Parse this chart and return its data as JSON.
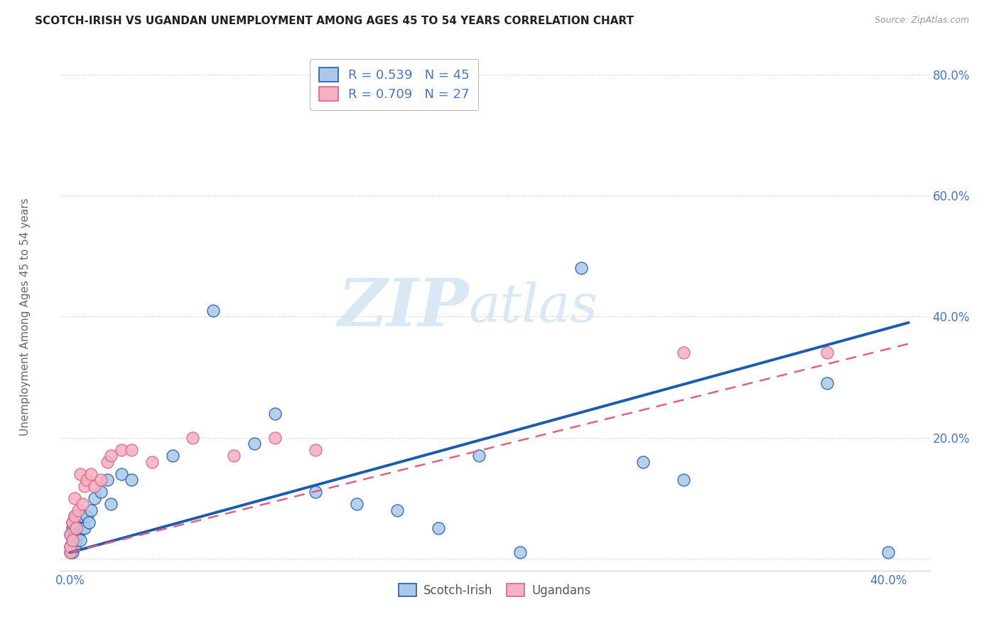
{
  "title": "SCOTCH-IRISH VS UGANDAN UNEMPLOYMENT AMONG AGES 45 TO 54 YEARS CORRELATION CHART",
  "source": "Source: ZipAtlas.com",
  "ylabel": "Unemployment Among Ages 45 to 54 years",
  "xlim": [
    -0.005,
    0.42
  ],
  "ylim": [
    -0.02,
    0.85
  ],
  "xticks": [
    0.0,
    0.05,
    0.1,
    0.15,
    0.2,
    0.25,
    0.3,
    0.35,
    0.4
  ],
  "yticks": [
    0.0,
    0.2,
    0.4,
    0.6,
    0.8
  ],
  "xtick_labels": [
    "0.0%",
    "",
    "",
    "",
    "",
    "",
    "",
    "",
    "40.0%"
  ],
  "ytick_labels": [
    "",
    "20.0%",
    "40.0%",
    "60.0%",
    "80.0%"
  ],
  "scotch_irish_R": 0.539,
  "scotch_irish_N": 45,
  "ugandan_R": 0.709,
  "ugandan_N": 27,
  "scotch_irish_color": "#aac8e8",
  "ugandan_color": "#f4b0c4",
  "scotch_irish_line_color": "#1a5cb0",
  "ugandan_line_color": "#e06080",
  "watermark_color": "#d8e8f5",
  "background_color": "#ffffff",
  "grid_color": "#cccccc",
  "scotch_irish_x": [
    0.0,
    0.0,
    0.0,
    0.001,
    0.001,
    0.001,
    0.001,
    0.002,
    0.002,
    0.002,
    0.002,
    0.003,
    0.003,
    0.003,
    0.004,
    0.004,
    0.005,
    0.005,
    0.006,
    0.006,
    0.007,
    0.008,
    0.009,
    0.01,
    0.012,
    0.015,
    0.018,
    0.02,
    0.025,
    0.03,
    0.05,
    0.07,
    0.09,
    0.1,
    0.12,
    0.14,
    0.16,
    0.18,
    0.2,
    0.22,
    0.25,
    0.28,
    0.3,
    0.37,
    0.4
  ],
  "scotch_irish_y": [
    0.01,
    0.02,
    0.04,
    0.01,
    0.03,
    0.05,
    0.06,
    0.02,
    0.04,
    0.05,
    0.07,
    0.03,
    0.05,
    0.07,
    0.04,
    0.06,
    0.03,
    0.06,
    0.05,
    0.07,
    0.05,
    0.07,
    0.06,
    0.08,
    0.1,
    0.11,
    0.13,
    0.09,
    0.14,
    0.13,
    0.17,
    0.41,
    0.19,
    0.24,
    0.11,
    0.09,
    0.08,
    0.05,
    0.17,
    0.01,
    0.48,
    0.16,
    0.13,
    0.29,
    0.01
  ],
  "ugandan_x": [
    0.0,
    0.0,
    0.0,
    0.001,
    0.001,
    0.002,
    0.002,
    0.003,
    0.004,
    0.005,
    0.006,
    0.007,
    0.008,
    0.01,
    0.012,
    0.015,
    0.018,
    0.02,
    0.025,
    0.03,
    0.04,
    0.06,
    0.08,
    0.1,
    0.12,
    0.3,
    0.37
  ],
  "ugandan_y": [
    0.01,
    0.02,
    0.04,
    0.03,
    0.06,
    0.07,
    0.1,
    0.05,
    0.08,
    0.14,
    0.09,
    0.12,
    0.13,
    0.14,
    0.12,
    0.13,
    0.16,
    0.17,
    0.18,
    0.18,
    0.16,
    0.2,
    0.17,
    0.2,
    0.18,
    0.34,
    0.34
  ],
  "si_line_x0": 0.0,
  "si_line_y0": 0.01,
  "si_line_x1": 0.41,
  "si_line_y1": 0.39,
  "ug_line_x0": 0.0,
  "ug_line_y0": 0.01,
  "ug_line_x1": 0.41,
  "ug_line_y1": 0.355
}
